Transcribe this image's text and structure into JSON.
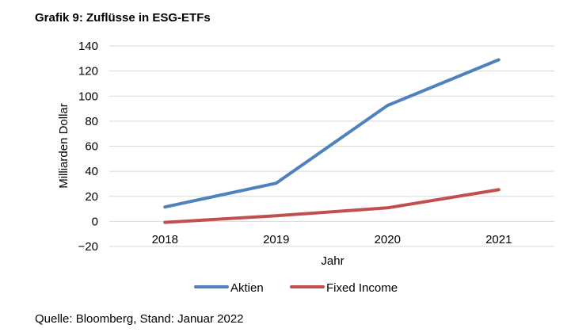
{
  "header": {
    "title": "Grafik 9: Zuflüsse in ESG-ETFs"
  },
  "footer": {
    "source": "Quelle: Bloomberg, Stand: Januar 2022"
  },
  "chart_data": {
    "type": "line",
    "title": "Grafik 9: Zuflüsse in ESG-ETFs",
    "xlabel": "Jahr",
    "ylabel": "Milliarden Dollar",
    "categories": [
      "2018",
      "2019",
      "2020",
      "2021"
    ],
    "ylim": [
      -20,
      140
    ],
    "yticks": [
      140,
      120,
      100,
      80,
      60,
      40,
      20,
      0,
      -20
    ],
    "ytick_labels": [
      "140",
      "120",
      "100",
      "80",
      "60",
      "40",
      "20",
      "0",
      "−20"
    ],
    "grid": true,
    "legend_position": "bottom",
    "series": [
      {
        "name": "Aktien",
        "color": "#4f81bd",
        "values": [
          11.5,
          30.5,
          92.5,
          129
        ]
      },
      {
        "name": "Fixed Income",
        "color": "#c0504d",
        "values": [
          -0.8,
          4.5,
          10.8,
          25.3
        ]
      }
    ]
  }
}
